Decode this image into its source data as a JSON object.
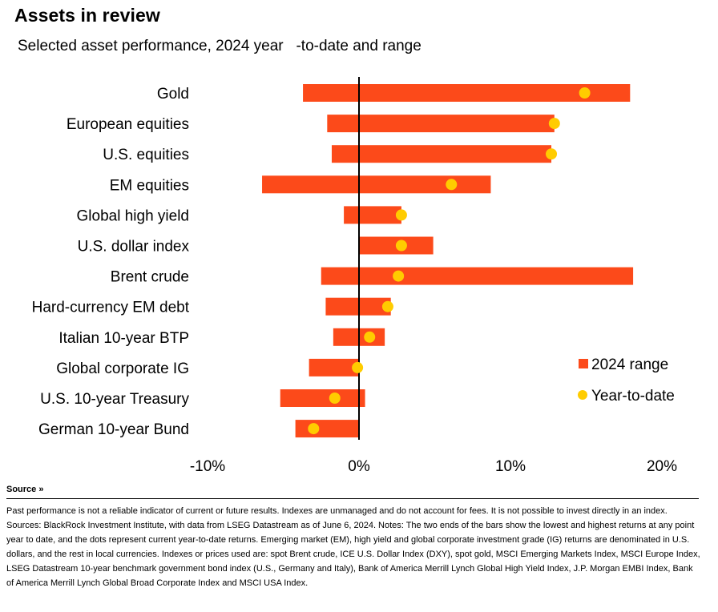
{
  "header": {
    "title": "Assets in review",
    "subtitle": "Selected asset performance, 2024 year   -to-date and range"
  },
  "colors": {
    "range_bar": "#fc4a1a",
    "ytd_dot": "#ffcc00",
    "zero_line": "#000000"
  },
  "chart_data": {
    "type": "bar",
    "orientation": "horizontal",
    "categories": [
      "Gold",
      "European equities",
      "U.S. equities",
      "EM equities",
      "Global high yield",
      "U.S. dollar index",
      "Brent crude",
      "Hard-currency EM debt",
      "Italian 10-year BTP",
      "Global corporate IG",
      "U.S. 10-year Treasury",
      "German 10-year Bund"
    ],
    "series": [
      {
        "name": "2024 range",
        "low": [
          -3.7,
          -2.1,
          -1.8,
          -6.4,
          -1.0,
          0.0,
          -2.5,
          -2.2,
          -1.7,
          -3.3,
          -5.2,
          -4.2
        ],
        "high": [
          17.9,
          12.9,
          12.7,
          8.7,
          2.8,
          4.9,
          18.1,
          2.1,
          1.7,
          0.0,
          0.4,
          0.0
        ]
      },
      {
        "name": "Year-to-date",
        "values": [
          14.9,
          12.9,
          12.7,
          6.1,
          2.8,
          2.8,
          2.6,
          1.9,
          0.7,
          -0.1,
          -1.6,
          -3.0
        ]
      }
    ],
    "xlim": [
      -10,
      20
    ],
    "xticks": [
      -10,
      0,
      10,
      20
    ],
    "xtick_labels": [
      "-10%",
      "0%",
      "10%",
      "20%"
    ],
    "legend_position": "right",
    "grid": false
  },
  "source": {
    "toggle_label": "Source »",
    "notes": "Past performance is not a reliable indicator of current or future results. Indexes are unmanaged and do not account for fees. It is not possible to invest directly in an index. Sources: BlackRock Investment Institute, with data from LSEG Datastream as of June 6, 2024. Notes: The two ends of the bars show the lowest and highest returns at any point year to date, and the dots represent current year-to-date returns. Emerging market (EM), high yield and global corporate investment grade (IG) returns are denominated in U.S. dollars, and the rest in local currencies. Indexes or prices used are: spot Brent crude, ICE U.S. Dollar Index (DXY), spot gold, MSCI Emerging Markets Index, MSCI Europe Index, LSEG Datastream 10-year benchmark government bond index (U.S., Germany and Italy), Bank of America Merrill Lynch Global High Yield Index, J.P. Morgan EMBI Index, Bank of America Merrill Lynch Global Broad Corporate Index and MSCI USA Index."
  }
}
